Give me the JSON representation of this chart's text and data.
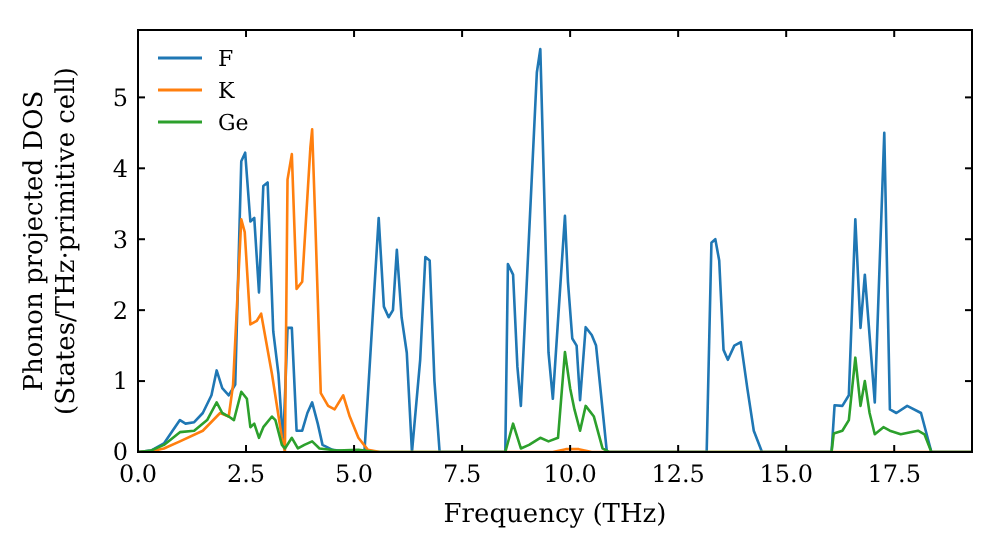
{
  "chart_data": {
    "type": "line",
    "xlabel": "Frequency (THz)",
    "ylabel": "Phonon projected DOS\n(States/THz·primitive cell)",
    "xlim": [
      0,
      19.3
    ],
    "ylim": [
      0,
      5.95
    ],
    "xticks": [
      {
        "value": 0,
        "label": "0.0"
      },
      2.5,
      {
        "value": 5,
        "label": "5.0"
      },
      7.5,
      {
        "value": 10,
        "label": "10.0"
      },
      12.5,
      {
        "value": 15,
        "label": "15.0"
      },
      17.5
    ],
    "yticks": [
      0,
      1,
      2,
      3,
      4,
      5
    ],
    "grid": false,
    "legend": "top left",
    "marker": "none",
    "line_style": "solid",
    "series": [
      {
        "name": "F",
        "color": "#1f77b4",
        "x": [
          0,
          0.3,
          0.6,
          0.8,
          0.97,
          1.1,
          1.3,
          1.5,
          1.7,
          1.82,
          1.95,
          2.1,
          2.25,
          2.39,
          2.48,
          2.6,
          2.69,
          2.8,
          2.9,
          3.0,
          3.13,
          3.25,
          3.36,
          3.46,
          3.56,
          3.67,
          3.8,
          3.92,
          4.03,
          4.16,
          4.27,
          4.5,
          4.9,
          5.24,
          5.57,
          5.69,
          5.8,
          5.9,
          5.99,
          6.1,
          6.22,
          6.34,
          6.53,
          6.65,
          6.75,
          6.86,
          6.98,
          8.5,
          8.56,
          8.68,
          8.78,
          8.86,
          9.23,
          9.31,
          9.5,
          9.6,
          9.88,
          9.95,
          10.05,
          10.15,
          10.23,
          10.36,
          10.5,
          10.6,
          10.85,
          13.16,
          13.27,
          13.36,
          13.45,
          13.55,
          13.65,
          13.8,
          13.95,
          14.1,
          14.25,
          14.44,
          16.05,
          16.12,
          16.3,
          16.45,
          16.6,
          16.72,
          16.82,
          17.05,
          17.27,
          17.4,
          17.55,
          17.8,
          18.12,
          18.36,
          19.3
        ],
        "values": [
          0,
          0.02,
          0.12,
          0.3,
          0.45,
          0.4,
          0.42,
          0.55,
          0.8,
          1.15,
          0.9,
          0.8,
          0.95,
          4.1,
          4.22,
          3.25,
          3.3,
          2.25,
          3.75,
          3.8,
          1.7,
          1.1,
          0.1,
          1.75,
          1.75,
          0.3,
          0.3,
          0.55,
          0.7,
          0.4,
          0.1,
          0.03,
          0,
          0,
          3.3,
          2.05,
          1.9,
          2.0,
          2.85,
          1.9,
          1.4,
          0,
          1.3,
          2.75,
          2.7,
          1.0,
          0,
          0,
          2.65,
          2.5,
          1.2,
          0.65,
          5.35,
          5.68,
          1.4,
          0.75,
          3.33,
          2.4,
          1.6,
          1.5,
          0.73,
          1.76,
          1.65,
          1.5,
          0,
          0,
          2.95,
          3.0,
          2.7,
          1.44,
          1.3,
          1.5,
          1.55,
          0.9,
          0.3,
          0,
          0,
          0.66,
          0.65,
          0.8,
          3.28,
          1.75,
          2.5,
          0.7,
          4.5,
          0.6,
          0.55,
          0.65,
          0.55,
          0,
          0
        ]
      },
      {
        "name": "K",
        "color": "#ff7f0e",
        "x": [
          0,
          0.3,
          0.6,
          0.97,
          1.5,
          1.9,
          2.1,
          2.2,
          2.39,
          2.47,
          2.6,
          2.75,
          2.85,
          3.1,
          3.33,
          3.4,
          3.46,
          3.56,
          3.67,
          3.8,
          3.99,
          4.03,
          4.1,
          4.23,
          4.4,
          4.55,
          4.75,
          4.9,
          5.1,
          5.32,
          5.6,
          9.6,
          9.9,
          10.2,
          10.5,
          19.3
        ],
        "values": [
          0,
          0.01,
          0.05,
          0.15,
          0.3,
          0.55,
          0.5,
          0.95,
          3.28,
          3.1,
          1.8,
          1.85,
          1.95,
          1.1,
          0.2,
          0,
          3.84,
          4.2,
          2.3,
          2.4,
          4.3,
          4.55,
          3.3,
          0.83,
          0.65,
          0.6,
          0.8,
          0.5,
          0.2,
          0.03,
          0,
          0,
          0.04,
          0.04,
          0,
          0
        ]
      },
      {
        "name": "Ge",
        "color": "#2ca02c",
        "x": [
          0,
          0.3,
          0.6,
          0.97,
          1.3,
          1.6,
          1.82,
          1.95,
          2.1,
          2.22,
          2.39,
          2.52,
          2.6,
          2.69,
          2.8,
          2.9,
          3.1,
          3.18,
          3.33,
          3.4,
          3.56,
          3.7,
          3.85,
          4.03,
          4.2,
          4.6,
          5.1,
          5.5,
          8.5,
          8.68,
          8.86,
          9.05,
          9.31,
          9.5,
          9.72,
          9.88,
          10.0,
          10.1,
          10.23,
          10.36,
          10.55,
          10.75,
          10.9,
          16.05,
          16.1,
          16.3,
          16.45,
          16.6,
          16.72,
          16.82,
          16.93,
          17.05,
          17.25,
          17.4,
          17.65,
          18.05,
          18.2,
          18.36,
          19.3
        ],
        "values": [
          0,
          0.02,
          0.1,
          0.28,
          0.3,
          0.45,
          0.7,
          0.55,
          0.5,
          0.45,
          0.85,
          0.75,
          0.35,
          0.4,
          0.2,
          0.35,
          0.5,
          0.45,
          0.1,
          0.05,
          0.2,
          0.05,
          0.1,
          0.15,
          0.05,
          0.02,
          0.03,
          0,
          0,
          0.4,
          0.05,
          0.1,
          0.2,
          0.15,
          0.2,
          1.41,
          0.9,
          0.6,
          0.3,
          0.65,
          0.5,
          0.05,
          0,
          0,
          0.26,
          0.3,
          0.45,
          1.33,
          0.65,
          1.0,
          0.55,
          0.25,
          0.35,
          0.3,
          0.25,
          0.3,
          0.25,
          0,
          0
        ]
      }
    ]
  }
}
